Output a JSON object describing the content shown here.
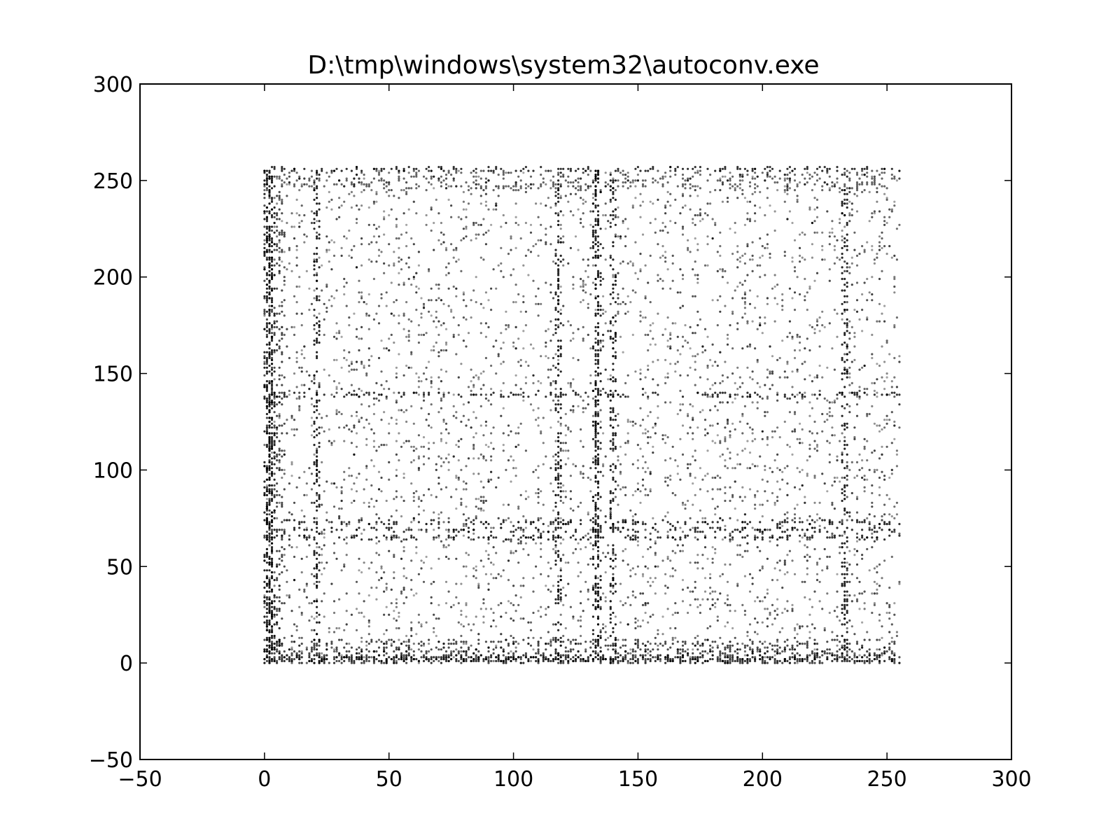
{
  "chart_data": {
    "type": "scatter",
    "title": "D:\\tmp\\windows\\system32\\autoconv.exe",
    "xlabel": "",
    "ylabel": "",
    "xlim": [
      -50,
      300
    ],
    "ylim": [
      -50,
      300
    ],
    "xticks": [
      -50,
      0,
      50,
      100,
      150,
      200,
      250,
      300
    ],
    "yticks": [
      -50,
      0,
      50,
      100,
      150,
      200,
      250,
      300
    ],
    "xtick_labels": [
      "−50",
      "0",
      "50",
      "100",
      "150",
      "200",
      "250",
      "300"
    ],
    "ytick_labels": [
      "−50",
      "0",
      "50",
      "100",
      "150",
      "200",
      "250",
      "300"
    ],
    "grid": false,
    "marker_color": "#000000",
    "series": [
      {
        "description": "byte-pair scatter: x = byte value, y = next byte value, both in range 0-255",
        "x_range": [
          0,
          255
        ],
        "y_range": [
          0,
          255
        ],
        "dense_columns_x": [
          0,
          1,
          2,
          20,
          117,
          132,
          133,
          139,
          232
        ],
        "dense_rows_y": [
          0,
          1,
          2,
          64,
          68,
          72,
          138,
          255
        ],
        "sample_points": [
          [
            0,
            0
          ],
          [
            0,
            255
          ],
          [
            255,
            0
          ],
          [
            255,
            255
          ],
          [
            117,
            20
          ],
          [
            117,
            100
          ],
          [
            133,
            180
          ],
          [
            139,
            70
          ],
          [
            232,
            150
          ],
          [
            232,
            40
          ],
          [
            20,
            120
          ],
          [
            65,
            72
          ],
          [
            200,
            120
          ],
          [
            200,
            68
          ],
          [
            183,
            75
          ],
          [
            70,
            140
          ],
          [
            150,
            90
          ],
          [
            180,
            220
          ],
          [
            60,
            200
          ],
          [
            100,
            10
          ],
          [
            210,
            230
          ],
          [
            240,
            8
          ],
          [
            30,
            250
          ],
          [
            90,
            250
          ]
        ]
      }
    ]
  }
}
